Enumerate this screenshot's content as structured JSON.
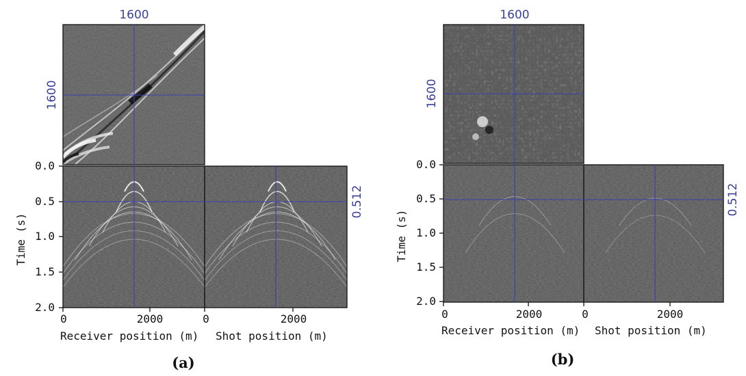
{
  "panels": [
    {
      "caption": "(a)",
      "crosshair_label_top": "1600",
      "crosshair_label_left": "1600",
      "crosshair_label_right": "0.512",
      "y_axis_label": "Time (s)",
      "y_ticks": [
        "0.0",
        "0.5",
        "1.0",
        "1.5",
        "2.0"
      ],
      "x_ticks_receiver": [
        "0",
        "2000"
      ],
      "x_ticks_shot": [
        "0",
        "2000"
      ],
      "x_label_receiver": "Receiver position (m)",
      "x_label_shot": "Shot position (m)"
    },
    {
      "caption": "(b)",
      "crosshair_label_top": "1600",
      "crosshair_label_left": "1600",
      "crosshair_label_right": "0.512",
      "y_axis_label": "Time (s)",
      "y_ticks": [
        "0.0",
        "0.5",
        "1.0",
        "1.5",
        "2.0"
      ],
      "x_ticks_receiver": [
        "0",
        "2000"
      ],
      "x_ticks_shot": [
        "0",
        "2000"
      ],
      "x_label_receiver": "Receiver position (m)",
      "x_label_shot": "Shot position (m)"
    }
  ],
  "colors": {
    "crosshair": "#3a3fb0",
    "panel_background": "#5a5a5a",
    "annotation_text": "#3a3f9a"
  }
}
